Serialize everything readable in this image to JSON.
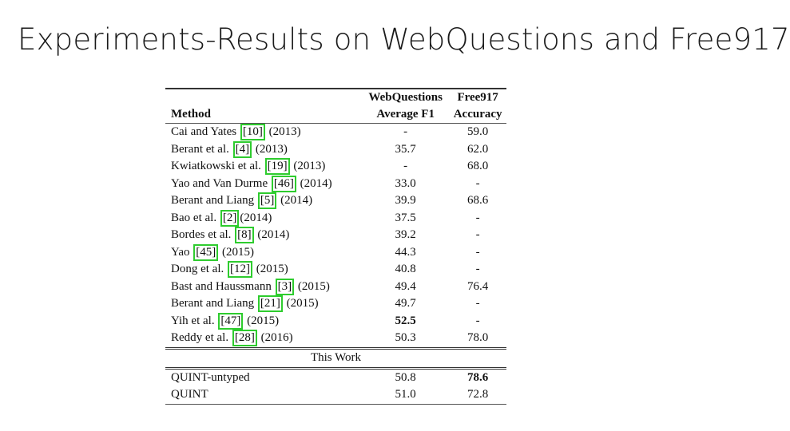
{
  "slide": {
    "title": "Experiments-Results on WebQuestions and Free917"
  },
  "table": {
    "header": {
      "method": "Method",
      "col1_line1": "WebQuestions",
      "col1_line2": "Average F1",
      "col2_line1": "Free917",
      "col2_line2": "Accuracy"
    },
    "rows": [
      {
        "pre": "Cai and Yates ",
        "cite": "[10]",
        "post": " (2013)",
        "f1": "-",
        "acc": "59.0"
      },
      {
        "pre": "Berant et al. ",
        "cite": "[4]",
        "post": " (2013)",
        "f1": "35.7",
        "acc": "62.0"
      },
      {
        "pre": "Kwiatkowski et al. ",
        "cite": "[19]",
        "post": " (2013)",
        "f1": "-",
        "acc": "68.0"
      },
      {
        "pre": "Yao and Van Durme ",
        "cite": "[46]",
        "post": " (2014)",
        "f1": "33.0",
        "acc": "-"
      },
      {
        "pre": "Berant and Liang ",
        "cite": "[5]",
        "post": " (2014)",
        "f1": "39.9",
        "acc": "68.6"
      },
      {
        "pre": "Bao et al. ",
        "cite": "[2]",
        "post": "(2014)",
        "f1": "37.5",
        "acc": "-"
      },
      {
        "pre": "Bordes et al. ",
        "cite": "[8]",
        "post": " (2014)",
        "f1": "39.2",
        "acc": "-"
      },
      {
        "pre": "Yao ",
        "cite": "[45]",
        "post": " (2015)",
        "f1": "44.3",
        "acc": "-"
      },
      {
        "pre": "Dong et al. ",
        "cite": "[12]",
        "post": " (2015)",
        "f1": "40.8",
        "acc": "-"
      },
      {
        "pre": "Bast and Haussmann ",
        "cite": "[3]",
        "post": " (2015)",
        "f1": "49.4",
        "acc": "76.4"
      },
      {
        "pre": "Berant and Liang ",
        "cite": "[21]",
        "post": " (2015)",
        "f1": "49.7",
        "acc": "-"
      },
      {
        "pre": "Yih et al. ",
        "cite": "[47]",
        "post": " (2015)",
        "f1": "52.5",
        "acc": "-"
      },
      {
        "pre": "Reddy et al. ",
        "cite": "[28]",
        "post": " (2016)",
        "f1": "50.3",
        "acc": "78.0"
      }
    ],
    "section_label": "This Work",
    "work_rows": [
      {
        "method": "QUINT-untyped",
        "f1": "50.8",
        "acc": "78.6"
      },
      {
        "method": "QUINT",
        "f1": "51.0",
        "acc": "72.8"
      }
    ],
    "highlight_color": "#2ecc2e"
  }
}
